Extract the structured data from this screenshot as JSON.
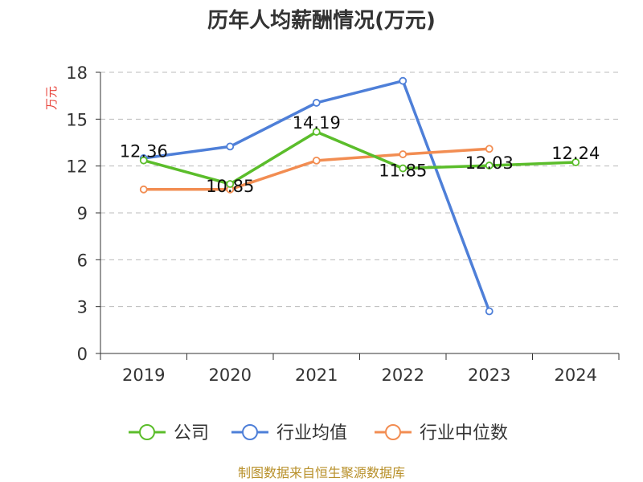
{
  "chart_data": {
    "type": "line",
    "title": "历年人均薪酬情况(万元)",
    "ylabel": "万元",
    "xlabel": "",
    "categories": [
      "2019",
      "2020",
      "2021",
      "2022",
      "2023",
      "2024"
    ],
    "ylim": [
      0,
      18
    ],
    "yticks": [
      0,
      3,
      6,
      9,
      12,
      15,
      18
    ],
    "grid": "horizontal-dashed",
    "legend_position": "bottom",
    "series": [
      {
        "name": "公司",
        "color": "#5bbd2b",
        "values": [
          12.36,
          10.85,
          14.19,
          11.85,
          12.03,
          12.24
        ],
        "labels": [
          "12.36",
          "10.85",
          "14.19",
          "11.85",
          "12.03",
          "12.24"
        ]
      },
      {
        "name": "行业均值",
        "color": "#4e7fd8",
        "values": [
          12.5,
          13.25,
          16.05,
          17.45,
          2.7,
          null
        ]
      },
      {
        "name": "行业中位数",
        "color": "#f28d52",
        "values": [
          10.5,
          10.5,
          12.35,
          12.75,
          13.1,
          null
        ]
      }
    ],
    "source": "制图数据来自恒生聚源数据库"
  }
}
